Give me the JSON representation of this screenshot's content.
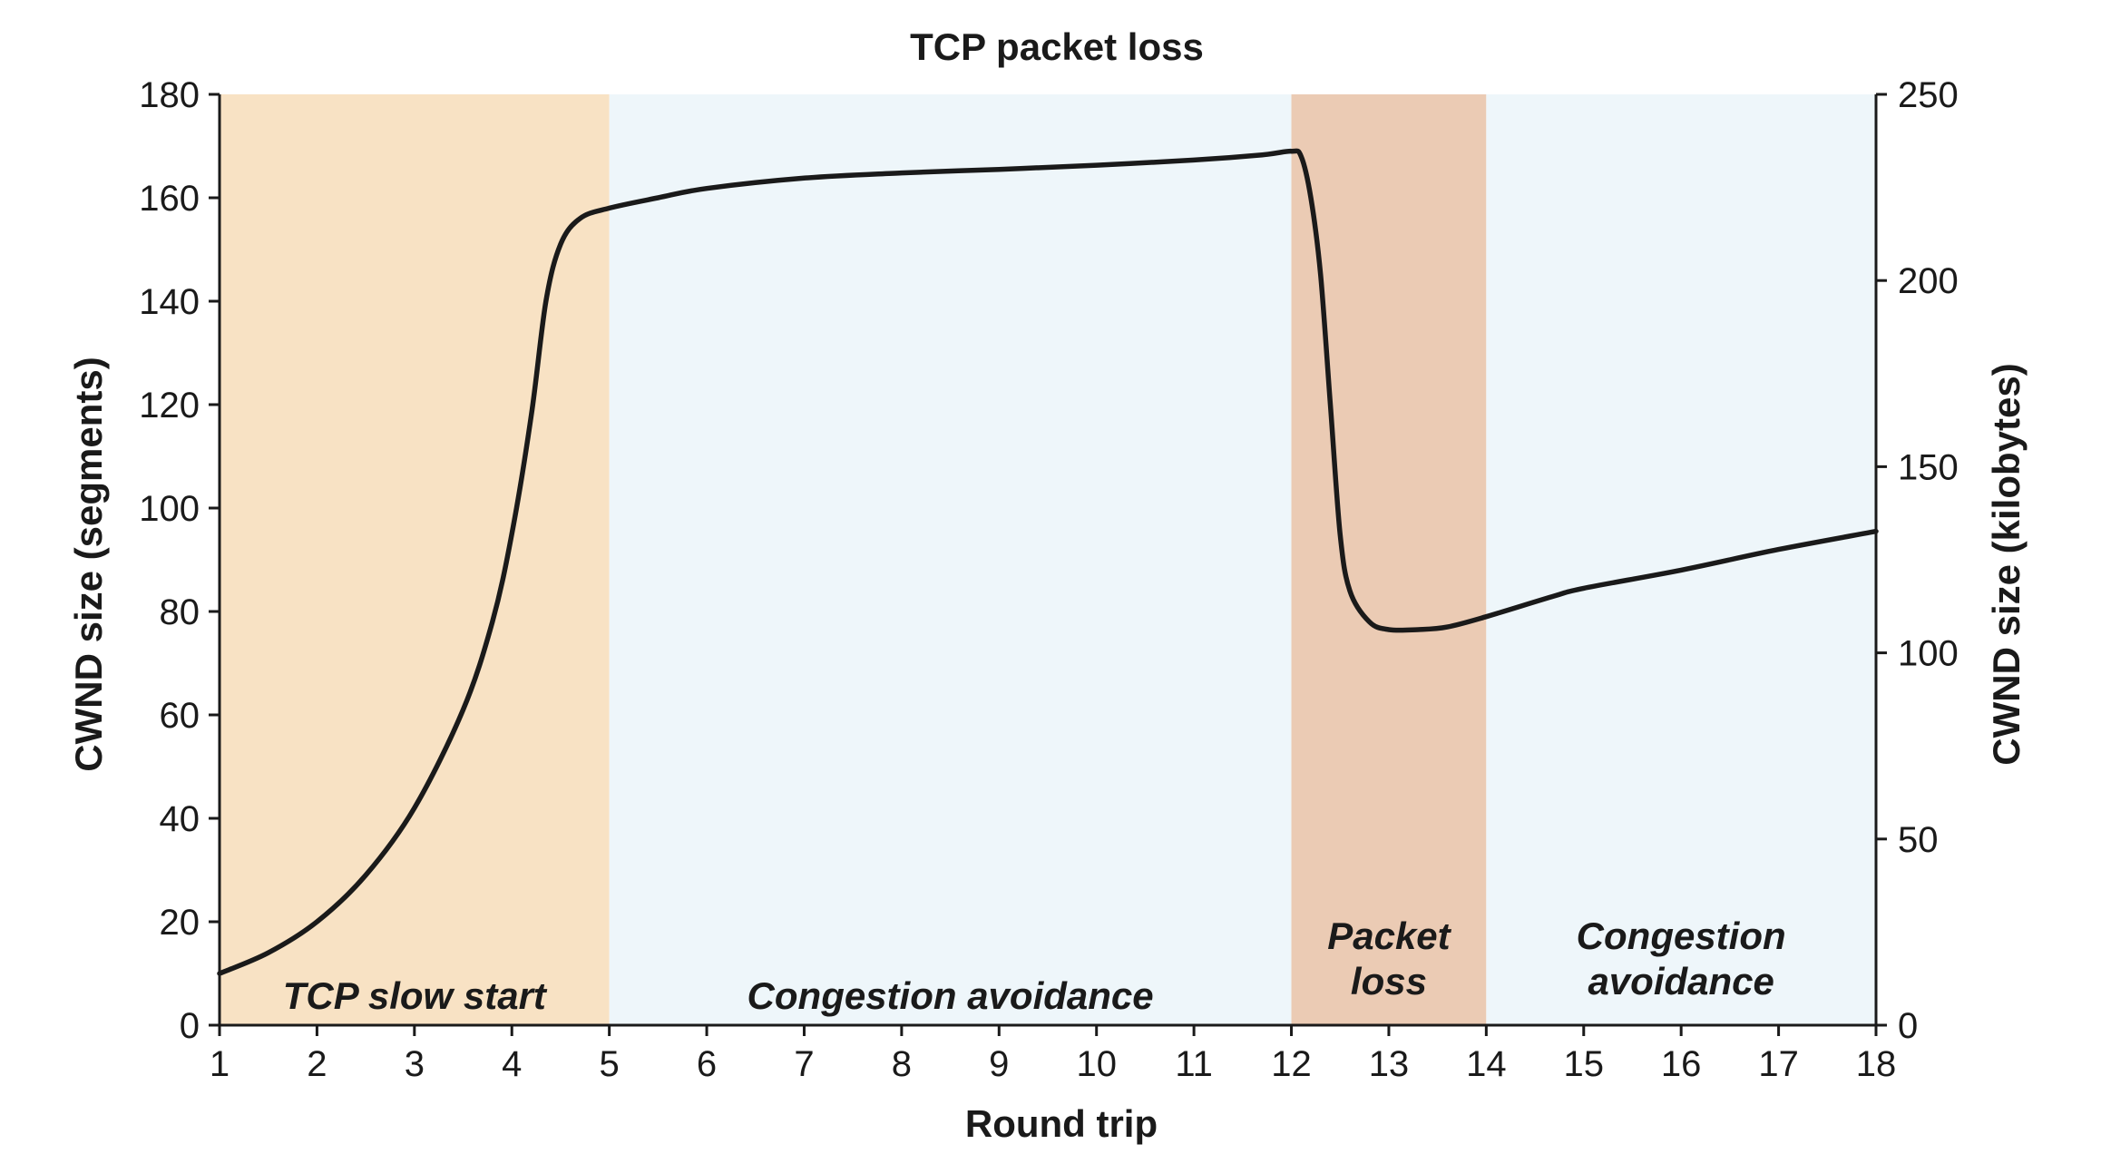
{
  "chart_data": {
    "type": "line",
    "title": "TCP packet loss",
    "xlabel": "Round trip",
    "ylabel": "CWND size (segments)",
    "y2label": "CWND size (kilobytes)",
    "xlim": [
      1,
      18
    ],
    "ylim": [
      0,
      180
    ],
    "y2lim": [
      0,
      250
    ],
    "xticks": [
      1,
      2,
      3,
      4,
      5,
      6,
      7,
      8,
      9,
      10,
      11,
      12,
      13,
      14,
      15,
      16,
      17,
      18
    ],
    "yticks": [
      0,
      20,
      40,
      60,
      80,
      100,
      120,
      140,
      160,
      180
    ],
    "y2ticks": [
      0,
      50,
      100,
      150,
      200,
      250
    ],
    "grid": false,
    "colors": {
      "slow_start": "#f8e2c4",
      "congestion_avoidance": "#eef6fa",
      "packet_loss": "#ebcbb4",
      "line": "#1a1a1a"
    },
    "regions": [
      {
        "x0": 1,
        "x1": 5,
        "color_key": "slow_start",
        "label_lines": [
          "TCP slow start"
        ]
      },
      {
        "x0": 5,
        "x1": 12,
        "color_key": "congestion_avoidance",
        "label_lines": [
          "Congestion avoidance"
        ]
      },
      {
        "x0": 12,
        "x1": 14,
        "color_key": "packet_loss",
        "label_lines": [
          "Packet",
          "loss"
        ]
      },
      {
        "x0": 14,
        "x1": 18,
        "color_key": "congestion_avoidance",
        "label_lines": [
          "Congestion",
          "avoidance"
        ]
      }
    ],
    "series": [
      {
        "x": [
          1,
          1.5,
          2,
          2.5,
          3,
          3.5,
          3.8,
          4.0,
          4.2,
          4.35,
          4.5,
          4.7,
          5.0,
          5.5,
          6,
          7,
          8,
          9,
          10,
          11,
          11.7,
          12.0,
          12.1,
          12.2,
          12.3,
          12.4,
          12.5,
          12.6,
          12.8,
          13.0,
          13.3,
          13.6,
          14.0,
          14.7,
          15,
          16,
          17,
          18
        ],
        "y": [
          10,
          14,
          20,
          29,
          42,
          61,
          78,
          95,
          118,
          140,
          151,
          156,
          158,
          160,
          161.8,
          163.8,
          164.8,
          165.5,
          166.3,
          167.3,
          168.3,
          169,
          168,
          160,
          145,
          120,
          95,
          84,
          78,
          76.5,
          76.5,
          77,
          79,
          83,
          84.5,
          88,
          92,
          95.5
        ]
      }
    ]
  }
}
